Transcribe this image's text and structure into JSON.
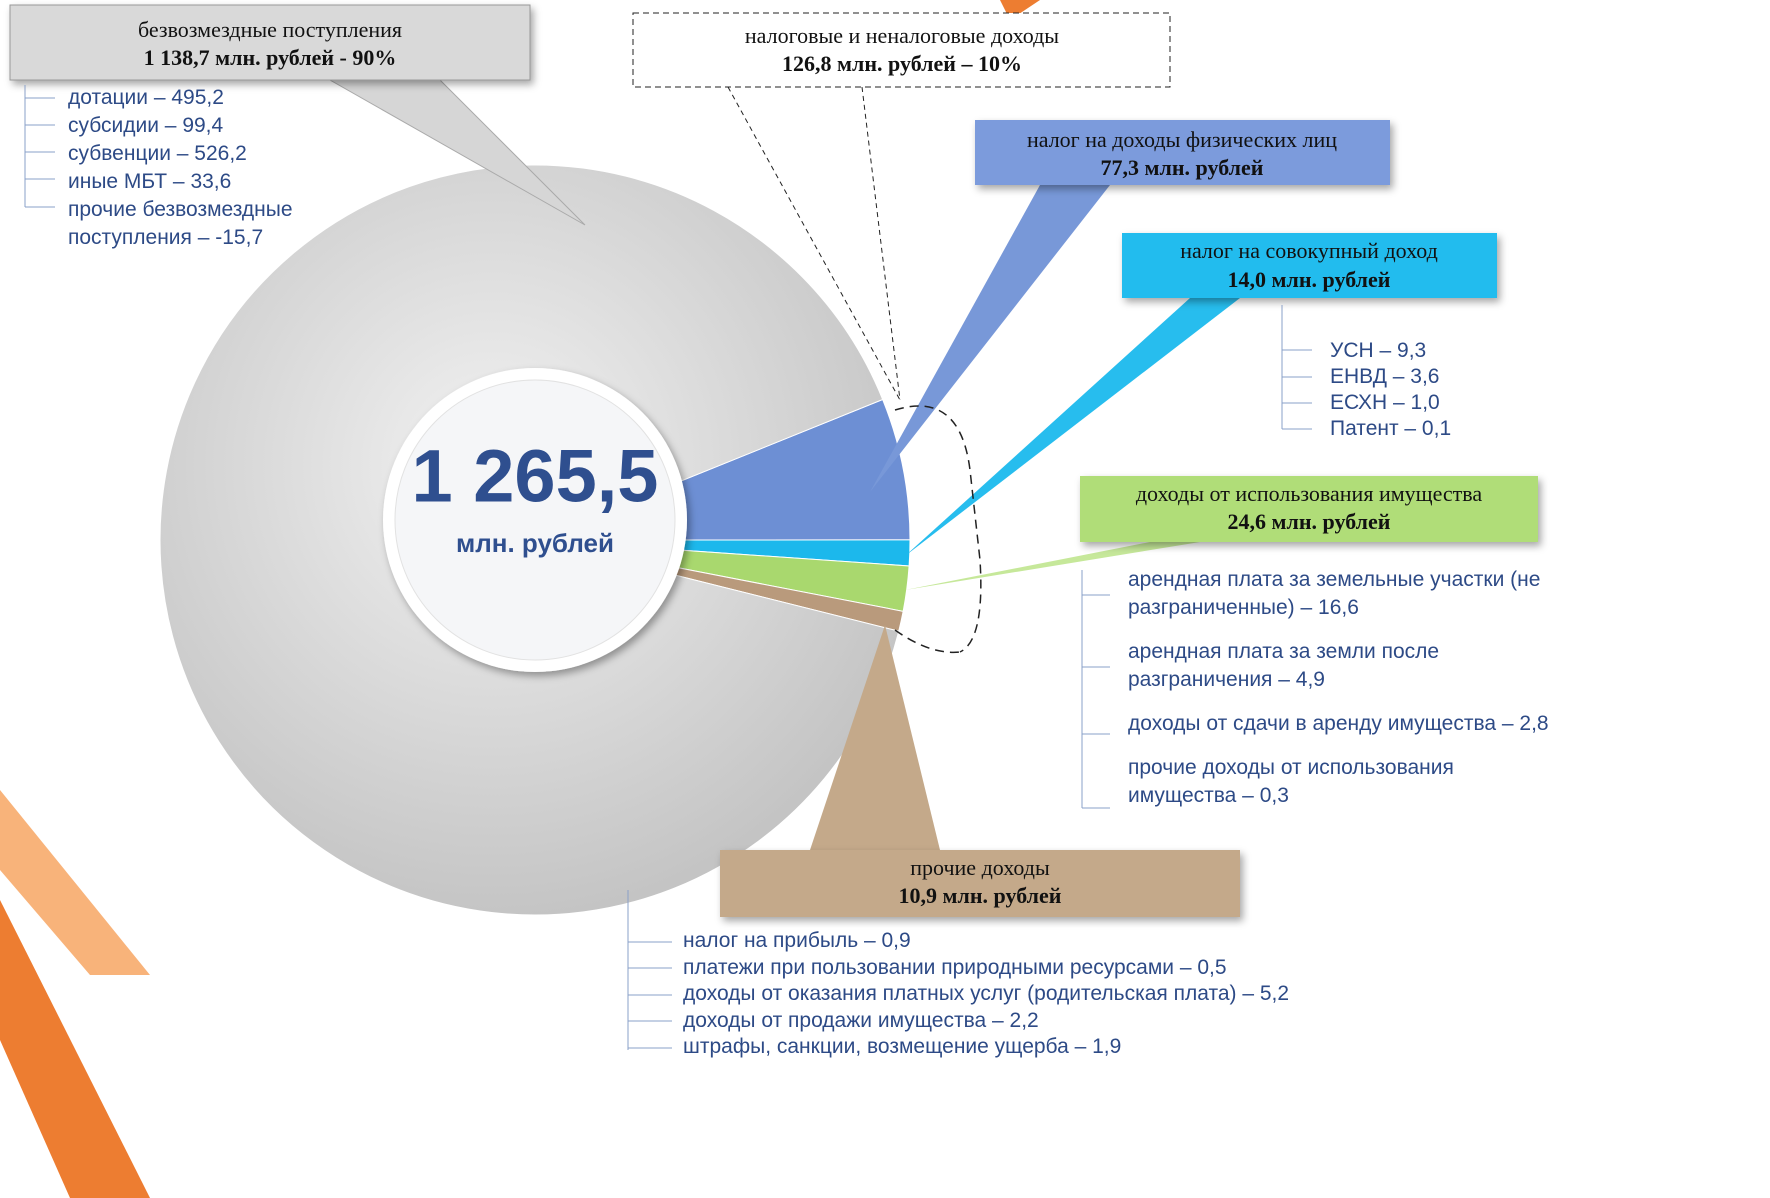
{
  "chart_data": {
    "type": "pie",
    "center_value": "1 265,5",
    "center_unit": "млн. рублей",
    "categories": [
      "безвозмездные поступления",
      "налог на доходы физических лиц",
      "налог на совокупный доход",
      "доходы от использования имущества",
      "прочие доходы"
    ],
    "values": [
      1138.7,
      77.3,
      14.0,
      24.6,
      10.9
    ],
    "value_labels": [
      "1 138,7 млн. рублей  - 90%",
      "77,3 млн. рублей",
      "14,0 млн. рублей",
      "24,6 млн. рублей",
      "10,9 млн. рублей"
    ],
    "colors": [
      "#d4d4d4",
      "#6d8fd4",
      "#1cb8ec",
      "#a9d86e",
      "#b99a7c"
    ],
    "group": {
      "name": "налоговые и неналоговые доходы",
      "value_label": "126,8 млн. рублей – 10%"
    },
    "details": [
      [
        "дотации – 495,2",
        "субсидии – 99,4",
        "субвенции – 526,2",
        "иные МБТ – 33,6",
        "прочие безвозмездные поступления – -15,7"
      ],
      [],
      [
        "УСН – 9,3",
        "ЕНВД – 3,6",
        "ЕСХН – 1,0",
        "Патент – 0,1"
      ],
      [
        "арендная плата за земельные участки (не разграниченные) – 16,6",
        "арендная плата за земли после разграничения – 4,9",
        "доходы от сдачи в аренду имущества – 2,8",
        "прочие доходы от использования имущества – 0,3"
      ],
      [
        "налог на прибыль – 0,9",
        "платежи при пользовании природными ресурсами – 0,5",
        "доходы от оказания платных услуг (родительская плата) – 5,2",
        "доходы от продажи имущества – 2,2",
        "штрафы, санкции, возмещение ущерба – 1,9"
      ]
    ]
  }
}
